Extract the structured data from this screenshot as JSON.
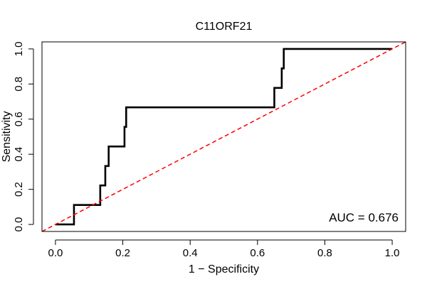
{
  "chart_data": {
    "type": "line",
    "title": "C11ORF21",
    "xlabel": "1 − Specificity",
    "ylabel": "Sensitivity",
    "xlim": [
      -0.04,
      1.04
    ],
    "ylim": [
      -0.04,
      1.04
    ],
    "xticks": [
      0.0,
      0.2,
      0.4,
      0.6,
      0.8,
      1.0
    ],
    "xtick_labels": [
      "0.0",
      "0.2",
      "0.4",
      "0.6",
      "0.8",
      "1.0"
    ],
    "yticks": [
      0.0,
      0.2,
      0.4,
      0.6,
      0.8,
      1.0
    ],
    "ytick_labels": [
      "0.0",
      "0.2",
      "0.4",
      "0.6",
      "0.8",
      "1.0"
    ],
    "series": [
      {
        "name": "ROC curve",
        "color": "#000000",
        "x": [
          0.0,
          0.055,
          0.055,
          0.133,
          0.133,
          0.148,
          0.148,
          0.158,
          0.158,
          0.205,
          0.205,
          0.21,
          0.21,
          0.65,
          0.65,
          0.672,
          0.672,
          0.678,
          0.678,
          1.0
        ],
        "y": [
          0.0,
          0.0,
          0.111,
          0.111,
          0.222,
          0.222,
          0.333,
          0.333,
          0.444,
          0.444,
          0.556,
          0.556,
          0.667,
          0.667,
          0.778,
          0.778,
          0.889,
          0.889,
          1.0,
          1.0
        ]
      },
      {
        "name": "Reference diagonal",
        "color": "#ff0000",
        "style": "dashed",
        "x": [
          -0.04,
          1.04
        ],
        "y": [
          -0.04,
          1.04
        ]
      }
    ],
    "annotation": "AUC = 0.676",
    "annotation_position": "bottom-right"
  }
}
